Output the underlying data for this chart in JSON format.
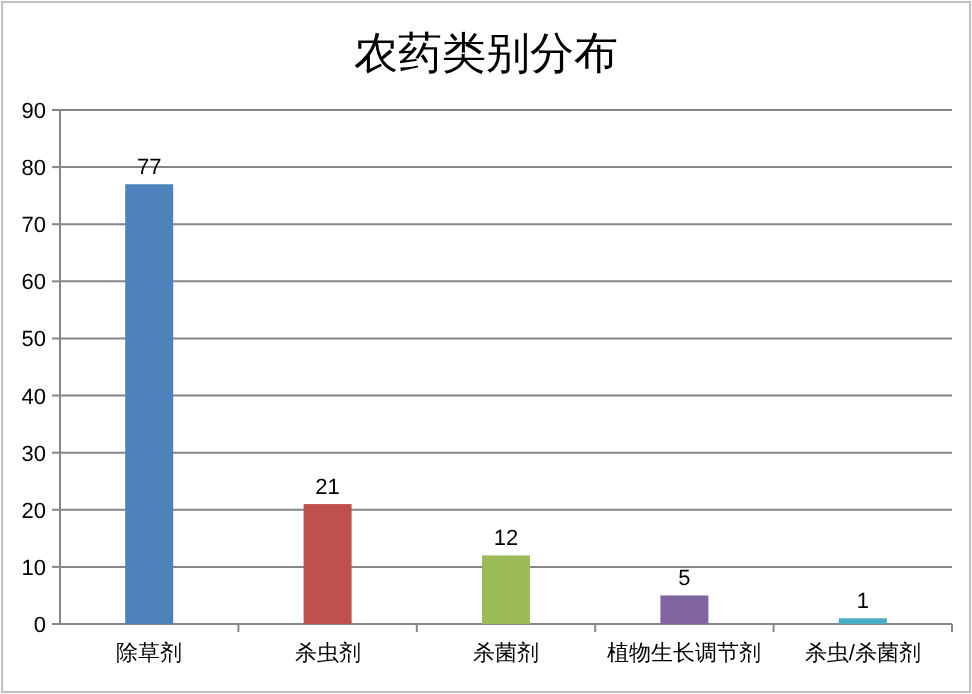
{
  "chart_data": {
    "type": "bar",
    "title": "农药类别分布",
    "categories": [
      "除草剂",
      "杀虫剂",
      "杀菌剂",
      "植物生长调节剂",
      "杀虫/杀菌剂"
    ],
    "values": [
      77,
      21,
      12,
      5,
      1
    ],
    "colors": [
      "#4f81bd",
      "#c0504d",
      "#9bbb59",
      "#8064a2",
      "#4bacc6"
    ],
    "ylim": [
      0,
      90
    ],
    "yticks": [
      0,
      10,
      20,
      30,
      40,
      50,
      60,
      70,
      80,
      90
    ],
    "grid": "y",
    "data_labels": true
  }
}
